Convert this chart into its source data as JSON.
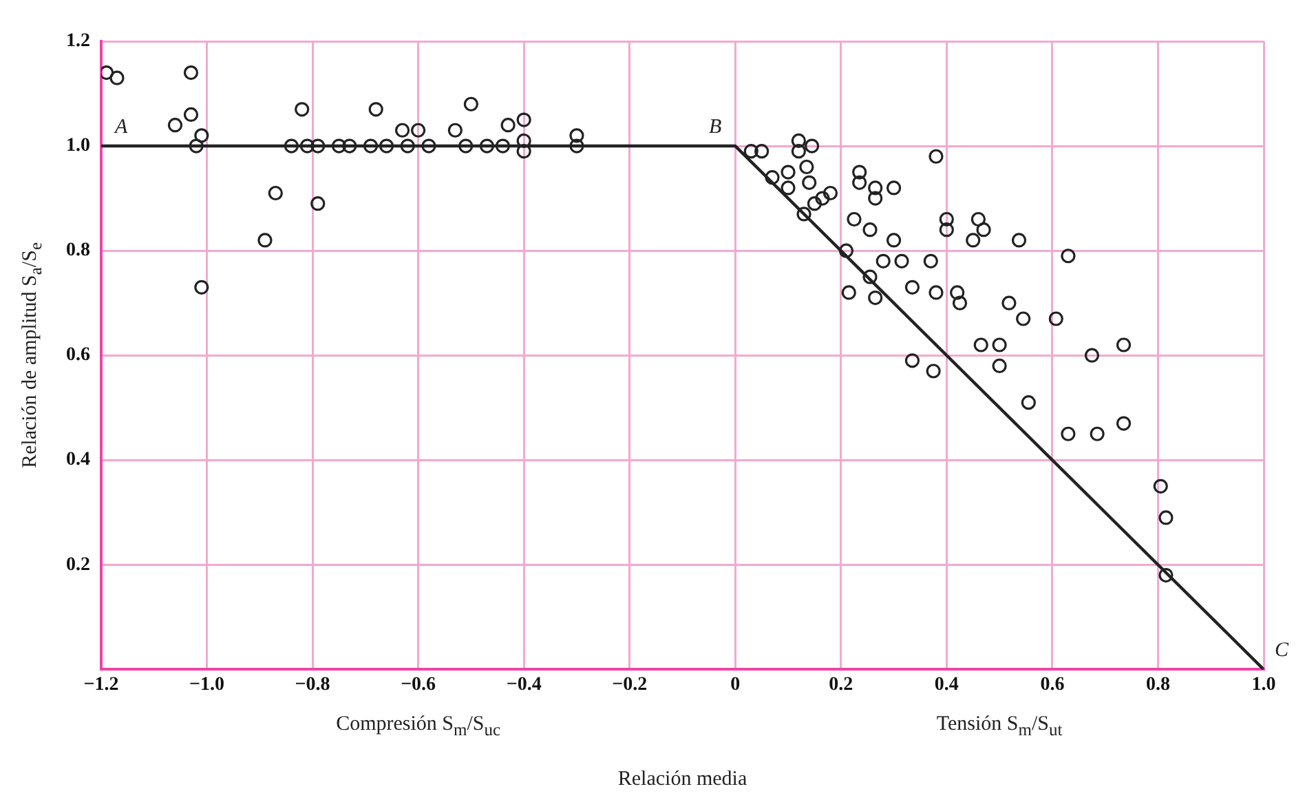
{
  "chart_data": {
    "type": "scatter",
    "xlabel": "Relación media",
    "ylabel": "Relación de amplitud S$_{a}$/S$_{e}$",
    "xlim": [
      -1.2,
      1.0
    ],
    "xticks": [
      {
        "value": -1.2,
        "label": "−1.2"
      },
      {
        "value": -1,
        "label": "−1.0"
      },
      {
        "value": -0.8,
        "label": "−0.8"
      },
      {
        "value": -0.6,
        "label": "−0.6"
      },
      {
        "value": -0.4,
        "label": "−0.4"
      },
      {
        "value": -0.2,
        "label": "−0.2"
      },
      0,
      0.2,
      0.4,
      0.6,
      0.8,
      {
        "value": 1,
        "label": "1.0"
      }
    ],
    "ylim": [
      0,
      1.2
    ],
    "yticks": [
      {
        "value": 0,
        "label": null
      },
      0.2,
      0.4,
      0.6,
      0.8,
      {
        "value": 1,
        "label": "1.0"
      },
      1.2
    ],
    "grid": true,
    "legend": false,
    "marker": "circle",
    "series": [
      {
        "type": "line",
        "color": "#222222",
        "marker": "none",
        "x": [
          -1.2,
          0,
          1.0
        ],
        "values": [
          1,
          1,
          0
        ]
      },
      {
        "color": "#222222",
        "x": [
          -1.19,
          -1.17,
          -1.03,
          -1.03,
          -1.06,
          -1.01,
          -1.02,
          -1.01,
          -0.89,
          -0.87,
          -0.84,
          -0.82,
          -0.81,
          -0.79,
          -0.79,
          -0.75,
          -0.73,
          -0.69,
          -0.68,
          -0.66,
          -0.63,
          -0.62,
          -0.6,
          -0.58,
          -0.53,
          -0.51,
          -0.5,
          -0.47,
          -0.44,
          -0.43,
          -0.4,
          -0.4,
          -0.4,
          -0.3,
          -0.3,
          0.03,
          0.05,
          0.07,
          0.1,
          0.1,
          0.12,
          0.12,
          0.145,
          0.135,
          0.14,
          0.13,
          0.15,
          0.165,
          0.18,
          0.38,
          0.235,
          0.235,
          0.265,
          0.265,
          0.3,
          0.225,
          0.255,
          0.3,
          0.21,
          0.255,
          0.28,
          0.315,
          0.37,
          0.335,
          0.38,
          0.42,
          0.425,
          0.215,
          0.265,
          0.4,
          0.4,
          0.46,
          0.47,
          0.45,
          0.465,
          0.335,
          0.375,
          0.5,
          0.5,
          0.545,
          0.607,
          0.518,
          0.555,
          0.63,
          0.685,
          0.675,
          0.735,
          0.735,
          0.805,
          0.815,
          0.815,
          0.537,
          0.63
        ],
        "values": [
          1.14,
          1.13,
          1.14,
          1.06,
          1.04,
          1.02,
          1.0,
          0.73,
          0.82,
          0.91,
          1.0,
          1.07,
          1.0,
          1.0,
          0.89,
          1.0,
          1.0,
          1.0,
          1.07,
          1.0,
          1.03,
          1.0,
          1.03,
          1.0,
          1.03,
          1.0,
          1.08,
          1.0,
          1.0,
          1.04,
          1.05,
          1.01,
          0.99,
          1.02,
          1.0,
          0.99,
          0.99,
          0.94,
          0.95,
          0.92,
          1.01,
          0.99,
          1.0,
          0.96,
          0.93,
          0.87,
          0.89,
          0.9,
          0.91,
          0.98,
          0.95,
          0.93,
          0.92,
          0.9,
          0.92,
          0.86,
          0.84,
          0.82,
          0.8,
          0.75,
          0.78,
          0.78,
          0.78,
          0.73,
          0.72,
          0.72,
          0.7,
          0.72,
          0.71,
          0.86,
          0.84,
          0.86,
          0.84,
          0.82,
          0.62,
          0.59,
          0.57,
          0.62,
          0.58,
          0.67,
          0.67,
          0.7,
          0.51,
          0.45,
          0.45,
          0.6,
          0.62,
          0.47,
          0.35,
          0.29,
          0.18,
          0.82,
          0.79
        ]
      }
    ],
    "annotations": [
      {
        "text": "A",
        "x": -1.2,
        "y": 1
      },
      {
        "text": "B",
        "x": 0,
        "y": 1
      },
      {
        "text": "C",
        "x": 1.0,
        "y": 0
      },
      "Compresión S$_{m}$/S$_{uc}$",
      "Tensión S$_{m}$/S$_{ut}$"
    ]
  }
}
